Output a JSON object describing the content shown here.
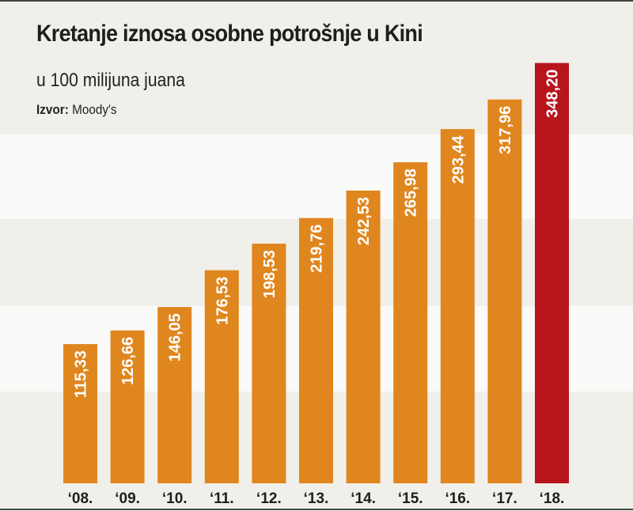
{
  "chart_data": {
    "type": "bar",
    "title": "Kretanje iznosa osobne potrošnje u Kini",
    "subtitle": "u 100 milijuna juana",
    "source_label": "Izvor:",
    "source": "Moody's",
    "xlabel": "",
    "ylabel": "",
    "ylim": [
      0,
      350
    ],
    "grid": false,
    "categories": [
      "‘08.",
      "‘09.",
      "‘10.",
      "‘11.",
      "‘12.",
      "‘13.",
      "‘14.",
      "‘15.",
      "‘16.",
      "‘17.",
      "‘18."
    ],
    "values": [
      115.33,
      126.66,
      146.05,
      176.53,
      198.53,
      219.76,
      242.53,
      265.98,
      293.44,
      317.96,
      348.2
    ],
    "data_labels": [
      "115,33",
      "126,66",
      "146,05",
      "176,53",
      "198,53",
      "219,76",
      "242,53",
      "265,98",
      "293,44",
      "317,96",
      "348,20"
    ],
    "colors": {
      "default": "#e0861e",
      "highlight": "#b8141c",
      "band_dark": "#f1efe9",
      "band_light": "#fafaf8"
    },
    "highlight_index": 10
  }
}
